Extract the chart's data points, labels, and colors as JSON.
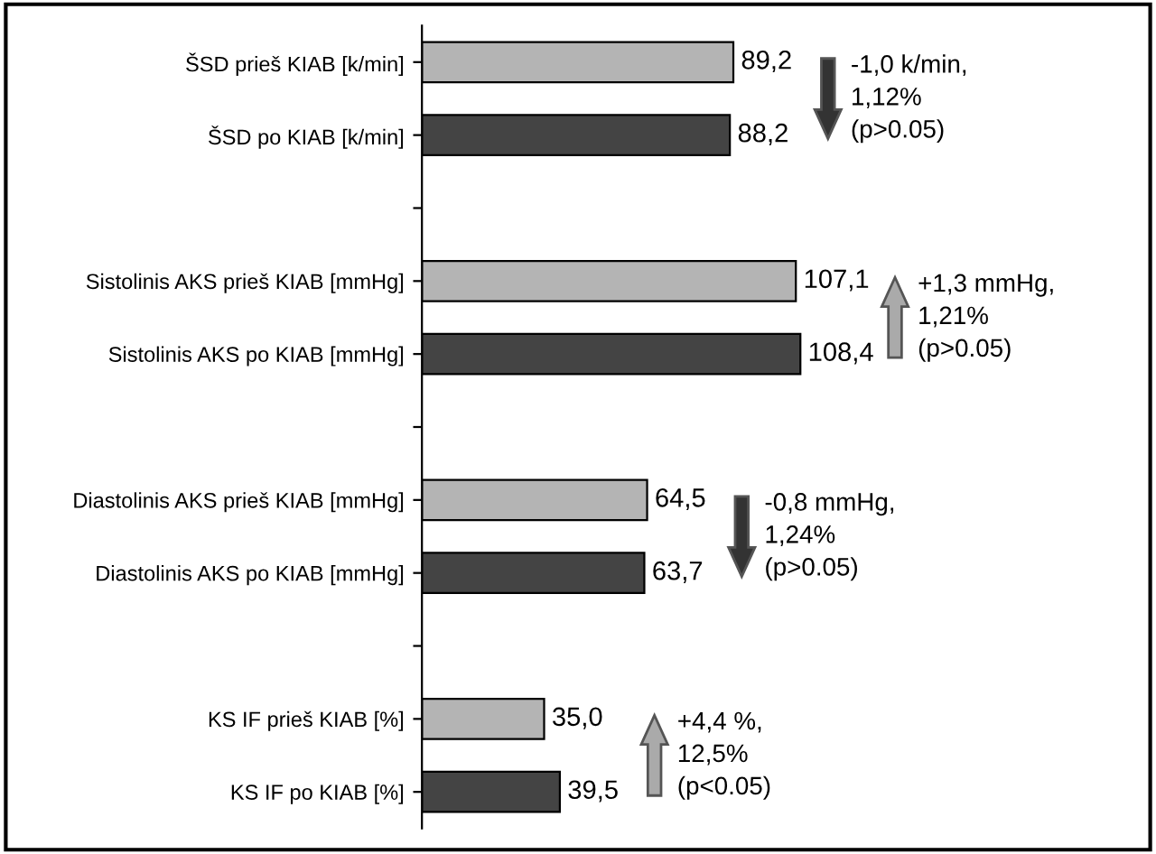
{
  "chart_data": {
    "type": "bar",
    "orientation": "horizontal",
    "categories": [
      "ŠSD prieš KIAB [k/min]",
      "ŠSD po KIAB [k/min]",
      null,
      "Sistolinis AKS prieš KIAB [mmHg]",
      "Sistolinis AKS po KIAB [mmHg]",
      null,
      "Diastolinis AKS prieš KIAB [mmHg]",
      "Diastolinis AKS po KIAB [mmHg]",
      null,
      "KS IF prieš KIAB [%]",
      "KS IF po KIAB [%]"
    ],
    "values": [
      89.2,
      88.2,
      null,
      107.1,
      108.4,
      null,
      64.5,
      63.7,
      null,
      35.0,
      39.5
    ],
    "colors": [
      "#b4b4b4",
      "#444444",
      null,
      "#b4b4b4",
      "#444444",
      null,
      "#b4b4b4",
      "#444444",
      null,
      "#b4b4b4",
      "#444444"
    ],
    "value_labels": [
      "89,2",
      "88,2",
      null,
      "107,1",
      "108,4",
      null,
      "64,5",
      "63,7",
      null,
      "35,0",
      "39,5"
    ],
    "annotations": [
      "-1,0 k/min,\n1,12%\n(p>0.05)",
      "+1,3 mmHg,\n1,21%\n(p>0.05)",
      "-0,8 mmHg,\n1,24%\n(p>0.05)",
      "+4,4 %,\n12,5%\n(p<0.05)"
    ],
    "grid": false
  }
}
